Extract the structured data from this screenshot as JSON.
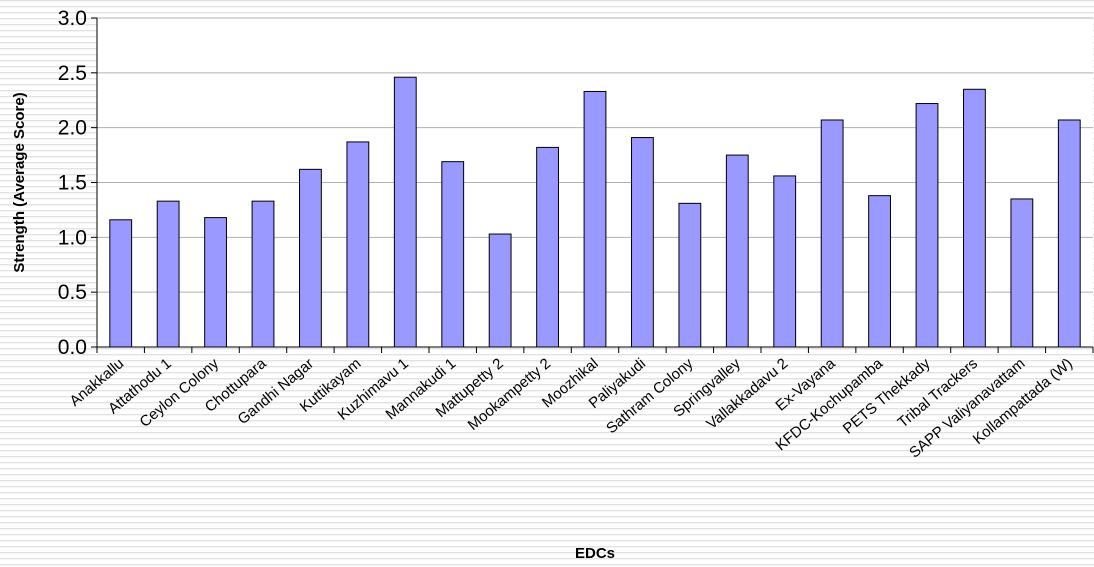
{
  "chart_data": {
    "type": "bar",
    "title": "",
    "xlabel": "EDCs",
    "ylabel": "Strength (Average Score)",
    "ylim": [
      0,
      3.0
    ],
    "yticks": [
      "0.0",
      "0.5",
      "1.0",
      "1.5",
      "2.0",
      "2.5",
      "3.0"
    ],
    "ytick_values": [
      0,
      0.5,
      1.0,
      1.5,
      2.0,
      2.5,
      3.0
    ],
    "grid": true,
    "legend": "none",
    "categories": [
      "Anakkallu",
      "Attathodu 1",
      "Ceylon Colony",
      "Chottupara",
      "Gandhi Nagar",
      "Kuttikayam",
      "Kuzhimavu 1",
      "Mannakudi 1",
      "Mattupetty 2",
      "Mookampetty 2",
      "Moozhikal",
      "Paliyakudi",
      "Sathram Colony",
      "Springvalley",
      "Vallakkadavu 2",
      "Ex-Vayana",
      "KFDC-Kochupamba",
      "PETS Thekkady",
      "Tribal Trackers",
      "SAPP Valiyanavattam",
      "Kollampattada (W)"
    ],
    "values": [
      1.16,
      1.33,
      1.18,
      1.33,
      1.62,
      1.87,
      2.46,
      1.69,
      1.03,
      1.82,
      2.33,
      1.91,
      1.31,
      1.75,
      1.56,
      2.07,
      1.38,
      2.22,
      2.35,
      1.35,
      2.07
    ],
    "colors": {
      "bar": "#9999ff",
      "bar_stroke": "#000000",
      "grid": "#b0b0b0",
      "background_stripe": "#e8e8e8"
    }
  }
}
